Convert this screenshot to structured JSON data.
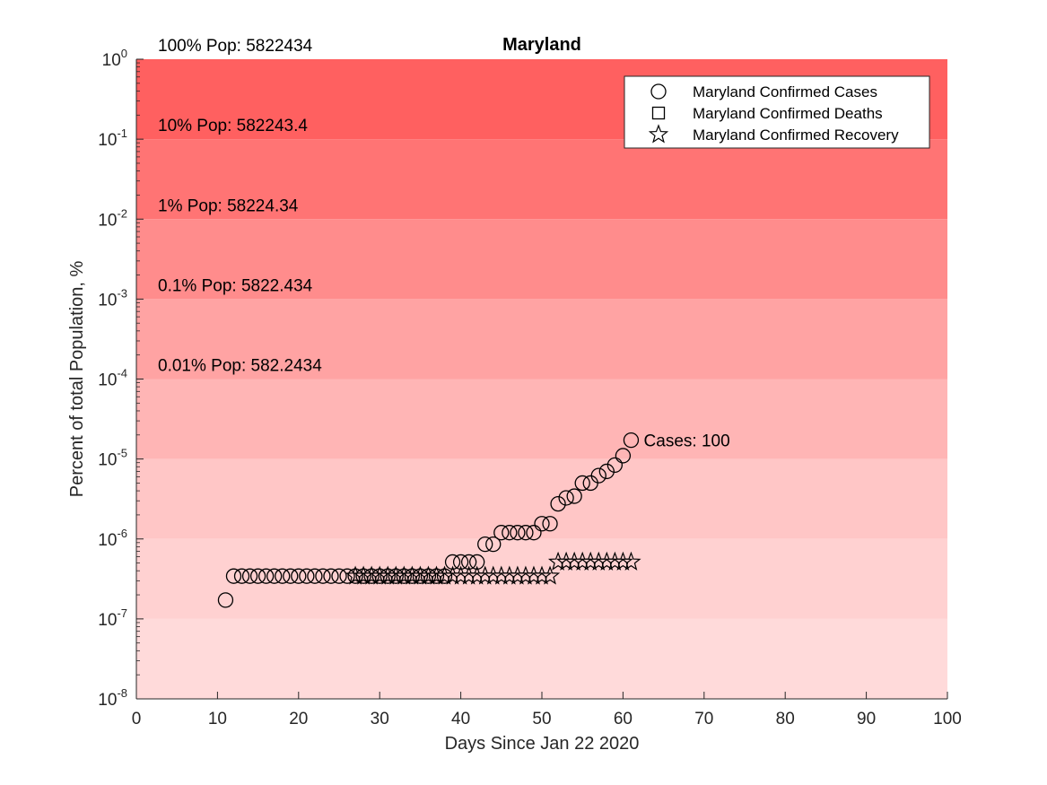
{
  "chart_data": {
    "type": "scatter",
    "title": "Maryland",
    "xlabel": "Days Since Jan 22 2020",
    "ylabel": "Percent of total Population, %",
    "xlim": [
      0,
      100
    ],
    "ylim_exp": [
      -8,
      0
    ],
    "y_scale": "log",
    "x_ticks": [
      "0",
      "10",
      "20",
      "30",
      "40",
      "50",
      "60",
      "70",
      "80",
      "90",
      "100"
    ],
    "y_ticks": [
      {
        "base": "10",
        "exp": "0"
      },
      {
        "base": "10",
        "exp": "-1"
      },
      {
        "base": "10",
        "exp": "-2"
      },
      {
        "base": "10",
        "exp": "-3"
      },
      {
        "base": "10",
        "exp": "-4"
      },
      {
        "base": "10",
        "exp": "-5"
      },
      {
        "base": "10",
        "exp": "-6"
      },
      {
        "base": "10",
        "exp": "-7"
      },
      {
        "base": "10",
        "exp": "-8"
      }
    ],
    "population_bands": [
      {
        "label": "100% Pop: 5822434",
        "color": "#ff6060"
      },
      {
        "label": "10% Pop: 582243.4",
        "color": "#ff7474"
      },
      {
        "label": "1% Pop: 58224.34",
        "color": "#ff8c8c"
      },
      {
        "label": "0.1% Pop: 5822.434",
        "color": "#ffa3a3"
      },
      {
        "label": "0.01% Pop: 582.2434",
        "color": "#ffb5b5"
      },
      {
        "label": "",
        "color": "#ffc6c6"
      },
      {
        "label": "",
        "color": "#ffd1d1"
      },
      {
        "label": "",
        "color": "#ffdada"
      }
    ],
    "legend_position": "top-right",
    "series": [
      {
        "name": "Maryland Confirmed Cases",
        "marker": "circle",
        "x": [
          11,
          12,
          13,
          14,
          15,
          16,
          17,
          18,
          19,
          20,
          21,
          22,
          23,
          24,
          25,
          26,
          27,
          28,
          29,
          30,
          31,
          32,
          33,
          34,
          35,
          36,
          37,
          38,
          39,
          40,
          41,
          42,
          43,
          44,
          45,
          46,
          47,
          48,
          49,
          50,
          51,
          52,
          53,
          54,
          55,
          56,
          57,
          58,
          59,
          60,
          61
        ],
        "y": [
          1.72e-07,
          3.43e-07,
          3.43e-07,
          3.43e-07,
          3.43e-07,
          3.43e-07,
          3.43e-07,
          3.43e-07,
          3.43e-07,
          3.43e-07,
          3.43e-07,
          3.43e-07,
          3.43e-07,
          3.43e-07,
          3.43e-07,
          3.43e-07,
          3.43e-07,
          3.43e-07,
          3.43e-07,
          3.43e-07,
          3.43e-07,
          3.43e-07,
          3.43e-07,
          3.43e-07,
          3.43e-07,
          3.43e-07,
          3.43e-07,
          3.43e-07,
          5.15e-07,
          5.15e-07,
          5.15e-07,
          5.15e-07,
          8.59e-07,
          8.59e-07,
          1.2e-06,
          1.2e-06,
          1.2e-06,
          1.2e-06,
          1.2e-06,
          1.55e-06,
          1.55e-06,
          2.75e-06,
          3.26e-06,
          3.43e-06,
          5e-06,
          5e-06,
          6.2e-06,
          7e-06,
          8.4e-06,
          1.1e-05,
          1.72e-05
        ]
      },
      {
        "name": "Maryland Confirmed Deaths",
        "marker": "square",
        "x": [],
        "y": []
      },
      {
        "name": "Maryland Confirmed Recovery",
        "marker": "star",
        "x": [
          27,
          28,
          29,
          30,
          31,
          32,
          33,
          34,
          35,
          36,
          37,
          38,
          39,
          40,
          41,
          42,
          43,
          44,
          45,
          46,
          47,
          48,
          49,
          50,
          51,
          52,
          53,
          54,
          55,
          56,
          57,
          58,
          59,
          60,
          61
        ],
        "y": [
          3.43e-07,
          3.43e-07,
          3.43e-07,
          3.43e-07,
          3.43e-07,
          3.43e-07,
          3.43e-07,
          3.43e-07,
          3.43e-07,
          3.43e-07,
          3.43e-07,
          3.43e-07,
          3.43e-07,
          3.43e-07,
          3.43e-07,
          3.43e-07,
          3.43e-07,
          3.43e-07,
          3.43e-07,
          3.43e-07,
          3.43e-07,
          3.43e-07,
          3.43e-07,
          3.43e-07,
          3.43e-07,
          5.15e-07,
          5.15e-07,
          5.15e-07,
          5.15e-07,
          5.15e-07,
          5.15e-07,
          5.15e-07,
          5.15e-07,
          5.15e-07,
          5.15e-07
        ]
      }
    ],
    "annotation": {
      "text": "Cases: 100",
      "x": 64,
      "y": 1.72e-05
    }
  }
}
